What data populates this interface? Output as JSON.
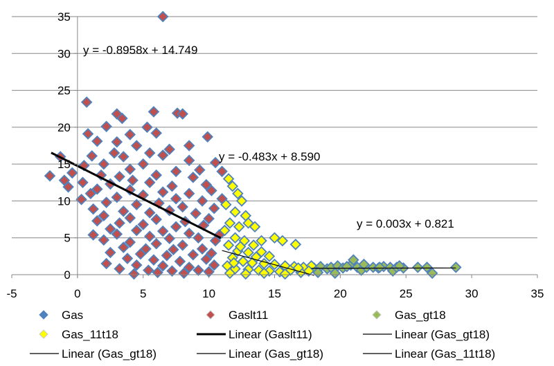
{
  "chart_data": {
    "type": "scatter",
    "xlim": [
      -5,
      35
    ],
    "ylim": [
      0,
      35
    ],
    "xticks": [
      -5,
      0,
      5,
      10,
      15,
      20,
      25,
      30,
      35
    ],
    "yticks": [
      0,
      5,
      10,
      15,
      20,
      25,
      30,
      35
    ],
    "grid": "horizontal",
    "legend_position": "bottom",
    "colors": {
      "Gas": "#4f81bd",
      "Gaslt11": "#c0504d",
      "Gas_gt18": "#9bbb59",
      "Gas_11t18": "#ffff00",
      "marker_outline": "#4f81bd",
      "trend": "#000000",
      "grid": "#868686"
    },
    "series": [
      {
        "name": "Gas",
        "marker": "diamond",
        "points": []
      },
      {
        "name": "Gaslt11",
        "marker": "diamond",
        "points": [
          [
            6.5,
            35
          ],
          [
            0.7,
            23.4
          ],
          [
            5.8,
            22.1
          ],
          [
            7.6,
            21.9
          ],
          [
            8.0,
            21.8
          ],
          [
            3.0,
            21.8
          ],
          [
            3.4,
            21.2
          ],
          [
            0.8,
            19.1
          ],
          [
            2.2,
            20.1
          ],
          [
            5.3,
            20.0
          ],
          [
            6.0,
            19.2
          ],
          [
            4.0,
            19.0
          ],
          [
            9.9,
            18.7
          ],
          [
            1.5,
            18.1
          ],
          [
            4.5,
            17.5
          ],
          [
            7.0,
            17.0
          ],
          [
            2.8,
            16.5
          ],
          [
            1.1,
            16.1
          ],
          [
            -1.3,
            16.0
          ],
          [
            3.5,
            16.0
          ],
          [
            6.5,
            16.2
          ],
          [
            8.5,
            15.5
          ],
          [
            10.5,
            15.2
          ],
          [
            0.5,
            14.8
          ],
          [
            2.0,
            15.0
          ],
          [
            5.0,
            15.0
          ],
          [
            9.3,
            14.2
          ],
          [
            4.0,
            14.3
          ],
          [
            7.5,
            14.0
          ],
          [
            -0.4,
            13.8
          ],
          [
            1.8,
            13.5
          ],
          [
            3.2,
            13.3
          ],
          [
            6.0,
            13.5
          ],
          [
            8.8,
            13.2
          ],
          [
            -2.1,
            13.4
          ],
          [
            -1.0,
            12.8
          ],
          [
            0.4,
            12.5
          ],
          [
            2.5,
            12.3
          ],
          [
            5.5,
            12.5
          ],
          [
            7.2,
            12.0
          ],
          [
            9.8,
            12.2
          ],
          [
            -0.7,
            11.9
          ],
          [
            1.5,
            11.6
          ],
          [
            4.0,
            11.5
          ],
          [
            6.5,
            11.2
          ],
          [
            8.5,
            11.0
          ],
          [
            10.2,
            11.4
          ],
          [
            1.0,
            11.0
          ],
          [
            3.0,
            10.5
          ],
          [
            5.0,
            10.8
          ],
          [
            7.5,
            10.3
          ],
          [
            9.5,
            10.0
          ],
          [
            0.3,
            10.2
          ],
          [
            2.2,
            9.8
          ],
          [
            4.5,
            9.5
          ],
          [
            6.2,
            9.7
          ],
          [
            8.0,
            9.2
          ],
          [
            10.4,
            9.0
          ],
          [
            1.2,
            8.9
          ],
          [
            3.5,
            8.6
          ],
          [
            5.5,
            8.4
          ],
          [
            7.0,
            8.7
          ],
          [
            9.0,
            8.3
          ],
          [
            2.0,
            8.0
          ],
          [
            4.0,
            7.7
          ],
          [
            6.0,
            7.5
          ],
          [
            8.2,
            7.2
          ],
          [
            10.0,
            7.6
          ],
          [
            1.5,
            7.3
          ],
          [
            3.2,
            7.0
          ],
          [
            5.0,
            6.8
          ],
          [
            7.5,
            6.5
          ],
          [
            9.6,
            6.7
          ],
          [
            2.5,
            6.2
          ],
          [
            4.5,
            6.0
          ],
          [
            6.5,
            5.9
          ],
          [
            8.5,
            5.6
          ],
          [
            1.2,
            5.4
          ],
          [
            3.0,
            5.5
          ],
          [
            5.5,
            5.2
          ],
          [
            7.0,
            4.9
          ],
          [
            9.2,
            5.0
          ],
          [
            10.5,
            4.6
          ],
          [
            2.0,
            4.7
          ],
          [
            4.0,
            4.4
          ],
          [
            6.0,
            4.2
          ],
          [
            8.0,
            4.0
          ],
          [
            3.5,
            3.7
          ],
          [
            5.2,
            3.5
          ],
          [
            7.3,
            3.4
          ],
          [
            9.5,
            3.5
          ],
          [
            2.5,
            3.0
          ],
          [
            4.8,
            2.8
          ],
          [
            6.8,
            2.6
          ],
          [
            8.8,
            2.7
          ],
          [
            10.2,
            2.9
          ],
          [
            3.8,
            2.2
          ],
          [
            5.8,
            2.0
          ],
          [
            7.8,
            1.8
          ],
          [
            9.8,
            2.1
          ],
          [
            2.2,
            1.5
          ],
          [
            4.5,
            1.3
          ],
          [
            6.5,
            1.2
          ],
          [
            8.5,
            1.0
          ],
          [
            10.4,
            1.3
          ],
          [
            3.2,
            0.8
          ],
          [
            5.4,
            0.6
          ],
          [
            7.2,
            0.5
          ],
          [
            9.2,
            0.6
          ],
          [
            4.3,
            0.1
          ],
          [
            6.1,
            0.3
          ],
          [
            8.1,
            0.2
          ],
          [
            10.0,
            0.4
          ],
          [
            11.0,
            10.3
          ],
          [
            10.8,
            5.4
          ],
          [
            11.0,
            14.0
          ],
          [
            3.0,
            18.0
          ],
          [
            8.5,
            17.5
          ],
          [
            5.5,
            16.5
          ],
          [
            4.2,
            12.8
          ]
        ]
      },
      {
        "name": "Gas_gt18",
        "marker": "diamond",
        "points": [
          [
            18.0,
            0.9
          ],
          [
            18.5,
            1.1
          ],
          [
            19.0,
            0.8
          ],
          [
            19.3,
            1.0
          ],
          [
            19.8,
            1.2
          ],
          [
            20.2,
            0.9
          ],
          [
            20.8,
            1.3
          ],
          [
            21.0,
            2.0
          ],
          [
            21.3,
            1.0
          ],
          [
            21.6,
            0.6
          ],
          [
            22.0,
            1.0
          ],
          [
            22.5,
            1.0
          ],
          [
            22.9,
            0.9
          ],
          [
            23.3,
            1.1
          ],
          [
            23.8,
            1.0
          ],
          [
            24.0,
            0.5
          ],
          [
            24.3,
            1.0
          ],
          [
            24.8,
            0.9
          ],
          [
            25.9,
            1.0
          ],
          [
            26.6,
            1.0
          ],
          [
            27.0,
            0.2
          ],
          [
            28.8,
            1.0
          ],
          [
            18.3,
            0.3
          ],
          [
            19.6,
            0.2
          ],
          [
            20.5,
            1.1
          ],
          [
            21.8,
            1.4
          ],
          [
            23.0,
            1.0
          ],
          [
            24.5,
            1.2
          ]
        ]
      },
      {
        "name": "Gas_11t18",
        "marker": "diamond",
        "points": [
          [
            11.5,
            13.0
          ],
          [
            11.8,
            12.0
          ],
          [
            12.2,
            11.0
          ],
          [
            12.5,
            10.0
          ],
          [
            11.3,
            9.5
          ],
          [
            12.0,
            8.5
          ],
          [
            12.8,
            8.0
          ],
          [
            13.0,
            7.0
          ],
          [
            11.6,
            7.0
          ],
          [
            12.3,
            6.5
          ],
          [
            11.2,
            6.0
          ],
          [
            13.5,
            6.5
          ],
          [
            12.0,
            5.0
          ],
          [
            12.7,
            4.6
          ],
          [
            13.4,
            4.0
          ],
          [
            14.0,
            4.6
          ],
          [
            15.0,
            5.0
          ],
          [
            15.6,
            4.6
          ],
          [
            16.6,
            4.1
          ],
          [
            11.5,
            4.0
          ],
          [
            12.2,
            3.2
          ],
          [
            13.0,
            3.0
          ],
          [
            14.0,
            3.1
          ],
          [
            14.6,
            2.5
          ],
          [
            11.8,
            2.3
          ],
          [
            12.6,
            1.8
          ],
          [
            13.3,
            1.6
          ],
          [
            14.2,
            1.5
          ],
          [
            15.0,
            1.4
          ],
          [
            15.8,
            1.2
          ],
          [
            16.5,
            1.1
          ],
          [
            17.2,
            1.0
          ],
          [
            17.8,
            1.2
          ],
          [
            11.4,
            1.2
          ],
          [
            12.0,
            0.8
          ],
          [
            13.0,
            0.7
          ],
          [
            13.8,
            0.6
          ],
          [
            14.6,
            0.5
          ],
          [
            15.4,
            0.4
          ],
          [
            16.2,
            0.6
          ],
          [
            17.0,
            0.3
          ],
          [
            17.6,
            0.5
          ],
          [
            11.6,
            0.2
          ],
          [
            12.8,
            0.1
          ],
          [
            14.2,
            0.2
          ],
          [
            15.8,
            0.1
          ],
          [
            16.8,
            0.9
          ],
          [
            13.6,
            2.4
          ],
          [
            12.4,
            3.8
          ],
          [
            11.9,
            1.6
          ]
        ]
      }
    ],
    "trendlines": [
      {
        "name": "Linear (Gaslt11)",
        "from": [
          -2.0,
          16.54
        ],
        "to": [
          10.9,
          4.98
        ],
        "width": 3
      },
      {
        "name": "Linear (Gas_11t18)",
        "from": [
          11.0,
          3.28
        ],
        "to": [
          18.0,
          -0.1
        ],
        "width": 1.2
      },
      {
        "name": "Linear (Gas_gt18)",
        "from": [
          17.8,
          0.87
        ],
        "to": [
          28.8,
          0.91
        ],
        "width": 1.2
      }
    ],
    "equations": [
      {
        "text": "y = -0.8958x + 14.749"
      },
      {
        "text": "y = -0.483x + 8.590"
      },
      {
        "text": "y = 0.003x + 0.821"
      }
    ],
    "legend": [
      {
        "label": "Gas",
        "kind": "marker",
        "series": "Gas"
      },
      {
        "label": "Gaslt11",
        "kind": "marker",
        "series": "Gaslt11"
      },
      {
        "label": "Gas_gt18",
        "kind": "marker",
        "series": "Gas_gt18"
      },
      {
        "label": "Gas_11t18",
        "kind": "marker",
        "series": "Gas_11t18"
      },
      {
        "label": "Linear (Gaslt11)",
        "kind": "thickline"
      },
      {
        "label": "Linear (Gas_gt18)",
        "kind": "thinline"
      },
      {
        "label": "Linear (Gas_gt18)",
        "kind": "thinline"
      },
      {
        "label": "Linear (Gas_gt18)",
        "kind": "thinline"
      },
      {
        "label": "Linear (Gas_11t18)",
        "kind": "thinline"
      }
    ]
  }
}
